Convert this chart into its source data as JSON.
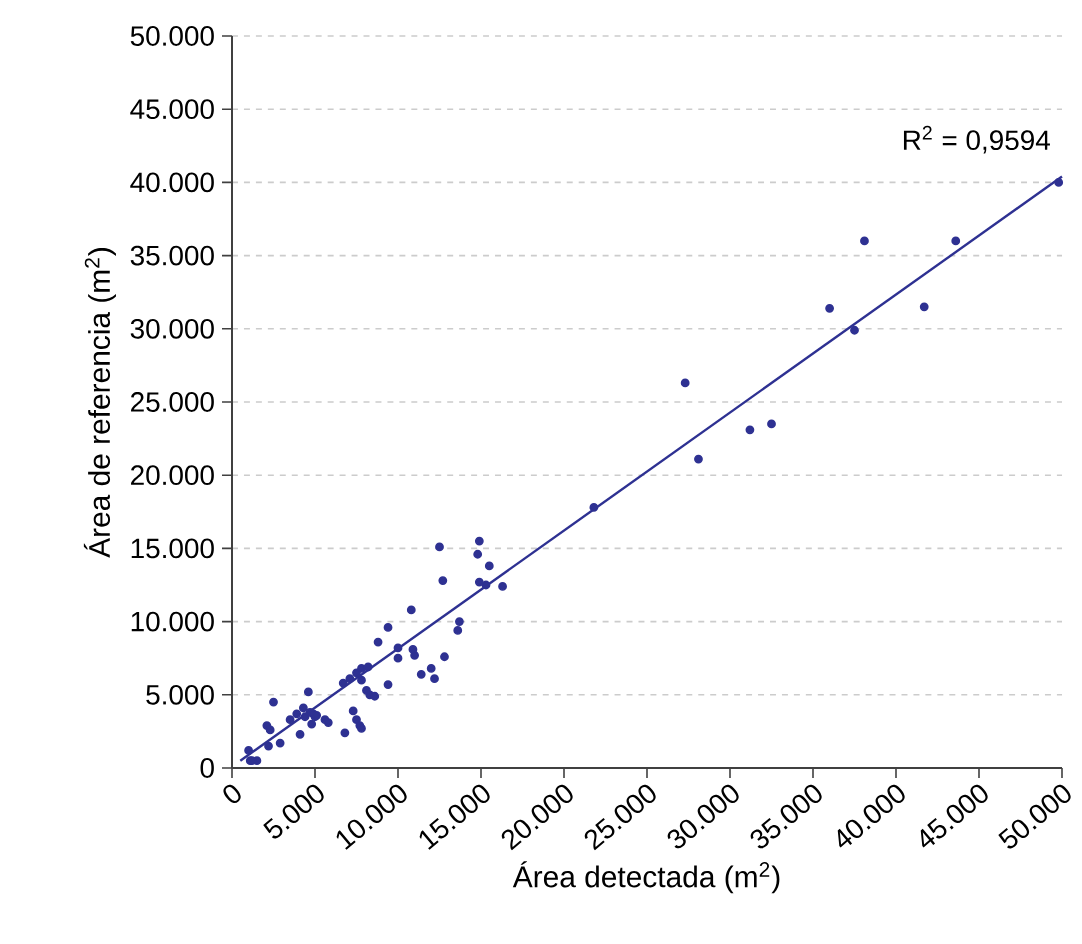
{
  "chart_data": {
    "type": "scatter",
    "xlabel": "Área detectada  (m$^{2}$)",
    "ylabel": "Área de referencia (m$^{2}$)",
    "annotations": [
      "R$^{2}$ = 0,9594"
    ],
    "xlim": [
      0,
      50000
    ],
    "ylim": [
      0,
      50000
    ],
    "xticks": [
      0,
      {
        "value": 5000,
        "label": "5.000"
      },
      {
        "value": 10000,
        "label": "10.000"
      },
      {
        "value": 15000,
        "label": "15.000"
      },
      {
        "value": 20000,
        "label": "20.000"
      },
      {
        "value": 25000,
        "label": "25.000"
      },
      {
        "value": 30000,
        "label": "30.000"
      },
      {
        "value": 35000,
        "label": "35.000"
      },
      {
        "value": 40000,
        "label": "40.000"
      },
      {
        "value": 45000,
        "label": "45.000"
      },
      {
        "value": 50000,
        "label": "50.000"
      }
    ],
    "yticks": [
      0,
      {
        "value": 5000,
        "label": "5.000"
      },
      {
        "value": 10000,
        "label": "10.000"
      },
      {
        "value": 15000,
        "label": "15.000"
      },
      {
        "value": 20000,
        "label": "20.000"
      },
      {
        "value": 25000,
        "label": "25.000"
      },
      {
        "value": 30000,
        "label": "30.000"
      },
      {
        "value": 35000,
        "label": "35.000"
      },
      {
        "value": 40000,
        "label": "40.000"
      },
      {
        "value": 45000,
        "label": "45.000"
      },
      {
        "value": 50000,
        "label": "50.000"
      }
    ],
    "grid": "y",
    "marker": "circle",
    "series": [
      {
        "color": "#2e3192",
        "x": [
          1000,
          1100,
          1500,
          1200,
          2100,
          2300,
          2500,
          2200,
          2900,
          3500,
          3900,
          4100,
          4300,
          4600,
          4400,
          4800,
          4700,
          5000,
          4900,
          5100,
          5600,
          5800,
          6800,
          6700,
          7100,
          7300,
          7500,
          7700,
          7800,
          7500,
          7800,
          8200,
          7800,
          8100,
          8300,
          8600,
          9400,
          8800,
          9400,
          10000,
          10000,
          10800,
          11000,
          10900,
          11400,
          12000,
          12200,
          12800,
          12500,
          12700,
          13700,
          13600,
          14900,
          14800,
          15500,
          14900,
          15300,
          16300,
          21800,
          27300,
          28100,
          31200,
          32500,
          36000,
          37500,
          38100,
          41700,
          43600,
          49800
        ],
        "values": [
          1200,
          500,
          500,
          500,
          2900,
          2600,
          4500,
          1500,
          1700,
          3300,
          3700,
          2300,
          4100,
          5200,
          3500,
          3000,
          3800,
          3500,
          3700,
          3600,
          3300,
          3100,
          2400,
          5800,
          6100,
          3900,
          3300,
          2900,
          2700,
          6500,
          6800,
          6900,
          6000,
          5300,
          5000,
          4900,
          5700,
          8600,
          9600,
          8200,
          7500,
          10800,
          7700,
          8100,
          6400,
          6800,
          6100,
          7600,
          15100,
          12800,
          10000,
          9400,
          15500,
          14600,
          13800,
          12700,
          12500,
          12400,
          17800,
          26300,
          21100,
          23100,
          23500,
          31400,
          29900,
          36000,
          31500,
          36000,
          40000
        ]
      },
      {
        "type": "line",
        "color": "#2e3192",
        "marker": "none",
        "x": [
          500,
          50000
        ],
        "values": [
          500,
          40400
        ]
      }
    ]
  }
}
